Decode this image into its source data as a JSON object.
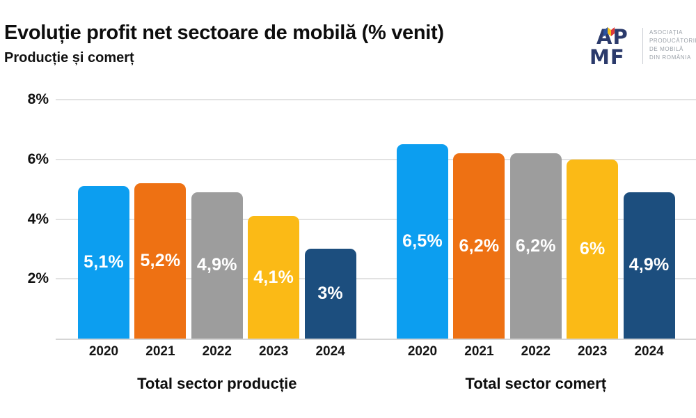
{
  "header": {
    "title": "Evoluție profit net sectoare de mobilă (% venit)",
    "subtitle": "Producție și comerț"
  },
  "logo": {
    "monogram_top": "AP",
    "monogram_bottom": "MF",
    "org_lines": [
      "ASOCIAȚIA",
      "PRODUCĂTORILOR",
      "DE MOBILĂ",
      "DIN ROMÂNIA"
    ],
    "navy": "#2b3a6b",
    "flag_blue": "#2a52a0",
    "flag_yellow": "#f6c31c",
    "flag_red": "#de3b3b"
  },
  "chart_data": {
    "type": "bar",
    "title": "Evoluție profit net sectoare de mobilă (% venit)",
    "subtitle": "Producție și comerț",
    "xlabel": "",
    "ylabel": "",
    "ylim": [
      0,
      8
    ],
    "grid": true,
    "legend_position": "none",
    "y_ticks": [
      {
        "value": 8,
        "label": "8%"
      },
      {
        "value": 6,
        "label": "6%"
      },
      {
        "value": 4,
        "label": "4%"
      },
      {
        "value": 2,
        "label": "2%"
      }
    ],
    "categories": [
      "2020",
      "2021",
      "2022",
      "2023",
      "2024"
    ],
    "bar_colors": [
      "#0c9ef0",
      "#ee7113",
      "#9d9d9d",
      "#fbba16",
      "#1c4e7e"
    ],
    "groups": [
      {
        "label": "Total sector producție",
        "values": [
          5.1,
          5.2,
          4.9,
          4.1,
          3
        ],
        "value_labels": [
          "5,1%",
          "5,2%",
          "4,9%",
          "4,1%",
          "3%"
        ]
      },
      {
        "label": "Total sector comerț",
        "values": [
          6.5,
          6.2,
          6.2,
          6,
          4.9
        ],
        "value_labels": [
          "6,5%",
          "6,2%",
          "6,2%",
          "6%",
          "4,9%"
        ]
      }
    ]
  }
}
